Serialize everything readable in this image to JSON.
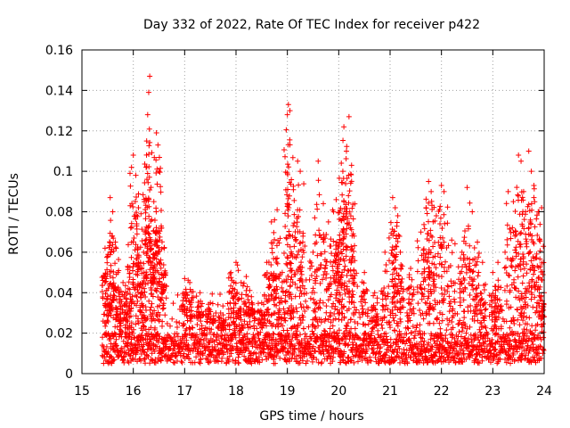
{
  "chart_data": {
    "type": "scatter",
    "title": "Day 332 of 2022, Rate Of TEC Index for receiver p422",
    "xlabel": "GPS time / hours",
    "ylabel": "ROTI / TECUs",
    "xlim": [
      15,
      24
    ],
    "ylim": [
      0,
      0.16
    ],
    "xticks": [
      15,
      16,
      17,
      18,
      19,
      20,
      21,
      22,
      23,
      24
    ],
    "yticks": [
      0,
      0.02,
      0.04,
      0.06,
      0.08,
      0.1,
      0.12,
      0.14,
      0.16
    ],
    "xtick_labels": [
      "15",
      "16",
      "17",
      "18",
      "19",
      "20",
      "21",
      "22",
      "23",
      "24"
    ],
    "ytick_labels": [
      "0",
      "0.02",
      "0.04",
      "0.06",
      "0.08",
      "0.1",
      "0.12",
      "0.14",
      "0.16"
    ],
    "grid": true,
    "marker": "+",
    "marker_color": "#ff0000",
    "data_start_hour": 15.4,
    "baseline_band": [
      0.005,
      0.02
    ],
    "series": [
      {
        "name": "p422",
        "points": [
          [
            15.45,
            0.062
          ],
          [
            15.5,
            0.058
          ],
          [
            15.55,
            0.087
          ],
          [
            15.6,
            0.08
          ],
          [
            15.65,
            0.065
          ],
          [
            15.7,
            0.05
          ],
          [
            15.8,
            0.045
          ],
          [
            15.9,
            0.042
          ],
          [
            15.95,
            0.072
          ],
          [
            16.0,
            0.108
          ],
          [
            16.05,
            0.098
          ],
          [
            16.1,
            0.082
          ],
          [
            16.15,
            0.079
          ],
          [
            16.2,
            0.06
          ],
          [
            16.25,
            0.102
          ],
          [
            16.28,
            0.128
          ],
          [
            16.3,
            0.139
          ],
          [
            16.32,
            0.147
          ],
          [
            16.35,
            0.062
          ],
          [
            16.4,
            0.085
          ],
          [
            16.45,
            0.119
          ],
          [
            16.48,
            0.113
          ],
          [
            16.5,
            0.1
          ],
          [
            16.55,
            0.072
          ],
          [
            16.6,
            0.062
          ],
          [
            17.0,
            0.047
          ],
          [
            17.1,
            0.045
          ],
          [
            17.3,
            0.04
          ],
          [
            17.5,
            0.035
          ],
          [
            17.7,
            0.03
          ],
          [
            17.9,
            0.05
          ],
          [
            18.0,
            0.055
          ],
          [
            18.1,
            0.045
          ],
          [
            18.2,
            0.048
          ],
          [
            18.3,
            0.038
          ],
          [
            18.5,
            0.035
          ],
          [
            18.6,
            0.055
          ],
          [
            18.7,
            0.062
          ],
          [
            18.75,
            0.076
          ],
          [
            18.8,
            0.081
          ],
          [
            18.9,
            0.05
          ],
          [
            19.0,
            0.128
          ],
          [
            19.02,
            0.133
          ],
          [
            19.05,
            0.13
          ],
          [
            19.1,
            0.068
          ],
          [
            19.2,
            0.105
          ],
          [
            19.25,
            0.1
          ],
          [
            19.3,
            0.065
          ],
          [
            19.5,
            0.06
          ],
          [
            19.6,
            0.105
          ],
          [
            19.7,
            0.084
          ],
          [
            19.8,
            0.075
          ],
          [
            19.9,
            0.08
          ],
          [
            19.95,
            0.086
          ],
          [
            20.0,
            0.063
          ],
          [
            20.05,
            0.104
          ],
          [
            20.08,
            0.1
          ],
          [
            20.1,
            0.122
          ],
          [
            20.15,
            0.11
          ],
          [
            20.2,
            0.127
          ],
          [
            20.25,
            0.103
          ],
          [
            20.3,
            0.068
          ],
          [
            20.5,
            0.05
          ],
          [
            20.7,
            0.04
          ],
          [
            20.9,
            0.06
          ],
          [
            21.05,
            0.087
          ],
          [
            21.1,
            0.082
          ],
          [
            21.15,
            0.078
          ],
          [
            21.2,
            0.06
          ],
          [
            21.4,
            0.052
          ],
          [
            21.6,
            0.07
          ],
          [
            21.7,
            0.082
          ],
          [
            21.75,
            0.095
          ],
          [
            21.8,
            0.09
          ],
          [
            21.9,
            0.078
          ],
          [
            22.0,
            0.093
          ],
          [
            22.05,
            0.09
          ],
          [
            22.2,
            0.066
          ],
          [
            22.4,
            0.06
          ],
          [
            22.5,
            0.092
          ],
          [
            22.6,
            0.08
          ],
          [
            22.7,
            0.065
          ],
          [
            22.8,
            0.055
          ],
          [
            23.0,
            0.05
          ],
          [
            23.1,
            0.055
          ],
          [
            23.3,
            0.09
          ],
          [
            23.4,
            0.085
          ],
          [
            23.5,
            0.108
          ],
          [
            23.55,
            0.105
          ],
          [
            23.6,
            0.09
          ],
          [
            23.7,
            0.11
          ],
          [
            23.75,
            0.1
          ],
          [
            23.8,
            0.093
          ],
          [
            23.9,
            0.08
          ],
          [
            23.95,
            0.082
          ],
          [
            24.0,
            0.04
          ]
        ]
      }
    ]
  }
}
